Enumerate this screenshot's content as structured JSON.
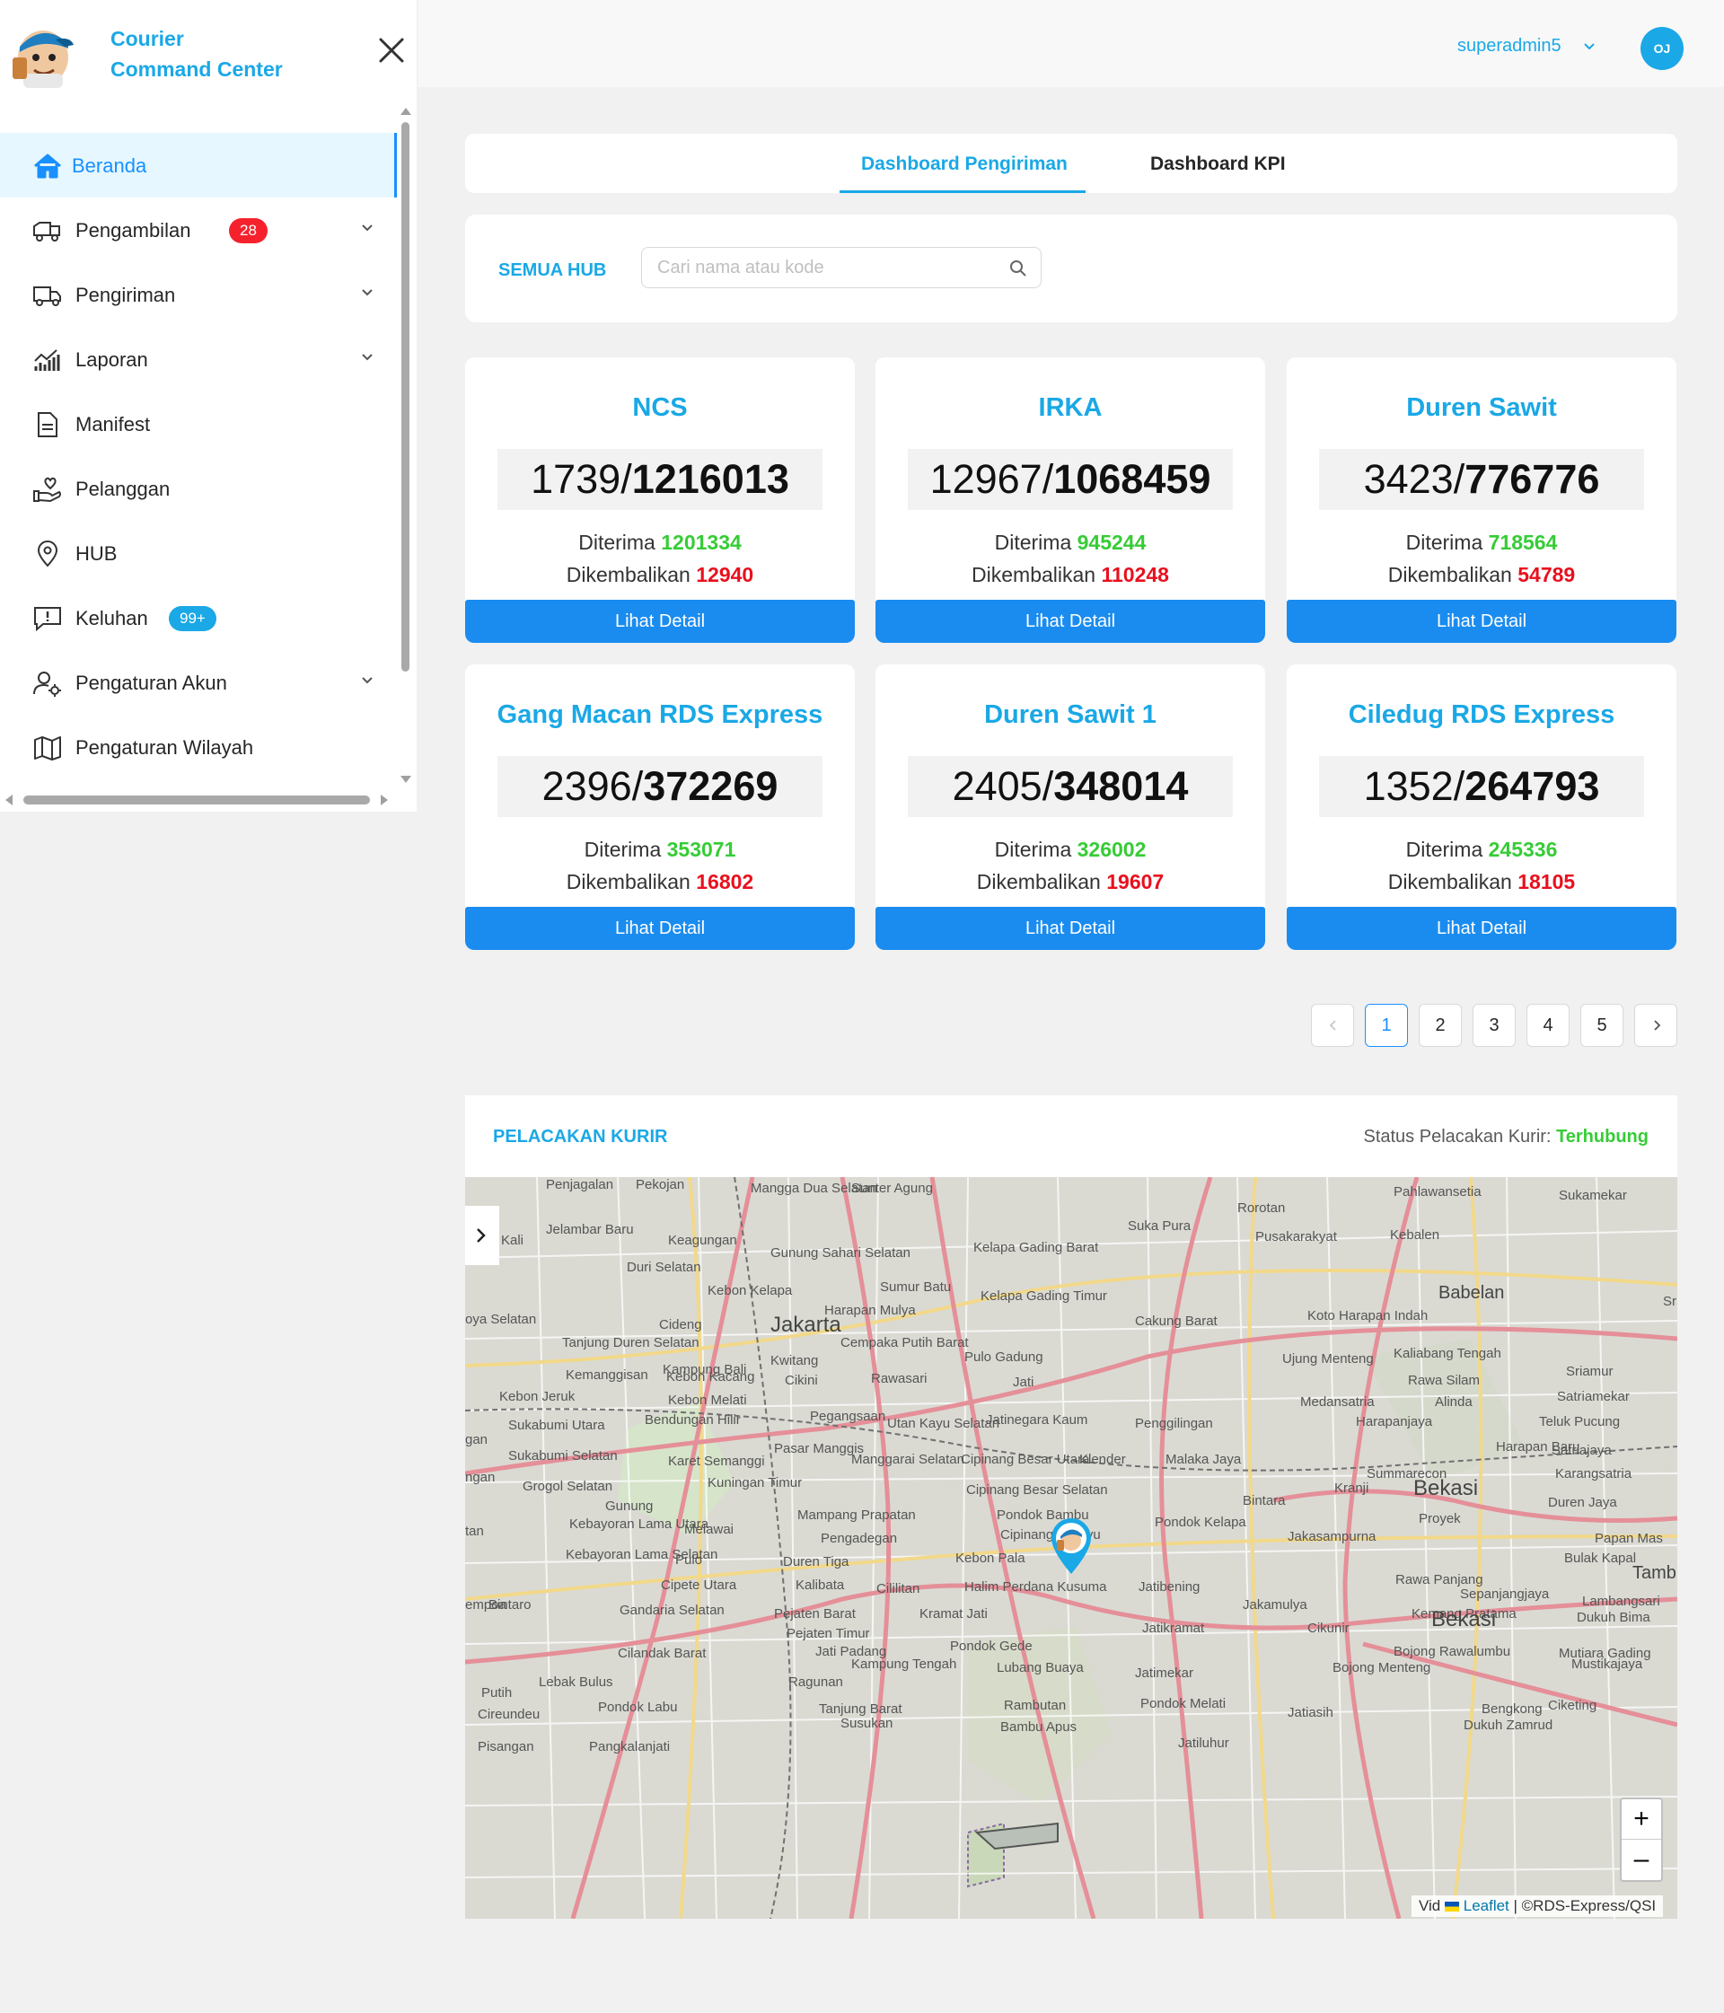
{
  "brand": {
    "title_line1": "Courier",
    "title_line2": "Command Center"
  },
  "sidebar": {
    "items": [
      {
        "label": "Beranda",
        "icon": "home-icon",
        "active": true
      },
      {
        "label": "Pengambilan",
        "icon": "truck-pickup-icon",
        "badge": "28",
        "expandable": true
      },
      {
        "label": "Pengiriman",
        "icon": "delivery-truck-icon",
        "expandable": true
      },
      {
        "label": "Laporan",
        "icon": "chart-icon",
        "expandable": true
      },
      {
        "label": "Manifest",
        "icon": "document-icon"
      },
      {
        "label": "Pelanggan",
        "icon": "hand-heart-icon"
      },
      {
        "label": "HUB",
        "icon": "location-pin-icon"
      },
      {
        "label": "Keluhan",
        "icon": "alert-message-icon",
        "badge": "99+"
      },
      {
        "label": "Pengaturan Akun",
        "icon": "user-settings-icon",
        "expandable": true
      },
      {
        "label": "Pengaturan Wilayah",
        "icon": "map-icon"
      }
    ]
  },
  "header": {
    "username": "superadmin5",
    "avatar_initials": "OJ"
  },
  "tabs": [
    {
      "label": "Dashboard Pengiriman",
      "active": true
    },
    {
      "label": "Dashboard KPI",
      "active": false
    }
  ],
  "filter": {
    "label": "SEMUA HUB",
    "search_placeholder": "Cari nama atau kode"
  },
  "hubs": [
    {
      "name": "NCS",
      "current": "1739",
      "total": "1216013",
      "received_label": "Diterima",
      "received": "1201334",
      "returned_label": "Dikembalikan",
      "returned": "12940",
      "button": "Lihat Detail"
    },
    {
      "name": "IRKA",
      "current": "12967",
      "total": "1068459",
      "received_label": "Diterima",
      "received": "945244",
      "returned_label": "Dikembalikan",
      "returned": "110248",
      "button": "Lihat Detail"
    },
    {
      "name": "Duren Sawit",
      "current": "3423",
      "total": "776776",
      "received_label": "Diterima",
      "received": "718564",
      "returned_label": "Dikembalikan",
      "returned": "54789",
      "button": "Lihat Detail"
    },
    {
      "name": "Gang Macan RDS Express",
      "current": "2396",
      "total": "372269",
      "received_label": "Diterima",
      "received": "353071",
      "returned_label": "Dikembalikan",
      "returned": "16802",
      "button": "Lihat Detail"
    },
    {
      "name": "Duren Sawit 1",
      "current": "2405",
      "total": "348014",
      "received_label": "Diterima",
      "received": "326002",
      "returned_label": "Dikembalikan",
      "returned": "19607",
      "button": "Lihat Detail"
    },
    {
      "name": "Ciledug RDS Express",
      "current": "1352",
      "total": "264793",
      "received_label": "Diterima",
      "received": "245336",
      "returned_label": "Dikembalikan",
      "returned": "18105",
      "button": "Lihat Detail"
    }
  ],
  "pagination": {
    "pages": [
      "1",
      "2",
      "3",
      "4",
      "5"
    ],
    "current": "1"
  },
  "tracking": {
    "title": "PELACAKAN KURIR",
    "status_label": "Status Pelacakan Kurir:",
    "status_value": "Terhubung",
    "zoom_in": "+",
    "zoom_out": "–",
    "attribution_prefix": "Vid",
    "attribution_link": "Leaflet",
    "attribution_suffix": " | ©RDS-Express/QSI",
    "labels": [
      "Penjagalan",
      "Pekojan",
      "Mangga Dua Selatan",
      "Sunter Agung",
      "Rorotan",
      "Pahlawansetia",
      "Sukamekar",
      "Kali",
      "Jelambar Baru",
      "Keagungan",
      "Gunung Sahari Selatan",
      "Kelapa Gading Barat",
      "Suka Pura",
      "Pusakarakyat",
      "Kebalen",
      "Duri Selatan",
      "Kebon Kelapa",
      "Sumur Batu",
      "Kelapa Gading Timur",
      "Babelan",
      "Cideng",
      "Jakarta",
      "Harapan Mulya",
      "Cakung Barat",
      "Koto Harapan Indah",
      "Tanjung Duren Selatan",
      "Cempaka Putih Barat",
      "Pulo Gadung",
      "Kaliabang Tengah",
      "Kampung Bali",
      "Kwitang",
      "Ujung Menteng",
      "Sriamur",
      "Kemanggisan",
      "Kebon Kacang",
      "Cikini",
      "Rawasari",
      "Rawa Silam",
      "Kebon Jeruk",
      "Kebon Melati",
      "Jati",
      "Medansatria",
      "Alinda",
      "Satriamekar",
      "Sukabumi Utara",
      "Bendungan Hilir",
      "Pegangsaan",
      "Utan Kayu Selatan",
      "Jatinegara Kaum",
      "Penggilingan",
      "Harapanjaya",
      "Teluk Pucung",
      "Pasar Manggis",
      "Harapan Baru",
      "Satriajaya",
      "Sukabumi Selatan",
      "Karet Semanggi",
      "Manggarai Selatan",
      "Cipinang Besar Utara",
      "Klender",
      "Malaka Jaya",
      "Summarecon",
      "Karangsatria",
      "Grogol Selatan",
      "Kuningan Timur",
      "Cipinang Besar Selatan",
      "Kranji",
      "Bintara",
      "Bekasi",
      "Duren Jaya",
      "Gunung",
      "Mampang Prapatan",
      "Pondok Bambu",
      "Pondok Kelapa",
      "Proyek",
      "Kebayoran Lama Utara",
      "Melawai",
      "Pengadegan",
      "Cipinang Melayu",
      "Jakasampurna",
      "Papan Mas",
      "Kebayoran Lama Selatan",
      "Pulo",
      "Duren Tiga",
      "Kebon Pala",
      "Bulak Kapal",
      "Tambun",
      "Cipete Utara",
      "Kalibata",
      "Cililitan",
      "Halim Perdana Kusuma",
      "Jatibening",
      "Rawa Panjang",
      "Sepanjangjaya",
      "Lambangsari",
      "Bintaro",
      "Gandaria Selatan",
      "Pejaten Barat",
      "Kramat Jati",
      "Jakamulya",
      "Kemang Pratama",
      "Dukuh Bima",
      "Pejaten Timur",
      "Jatikramat",
      "Cikunir",
      "Bekasi",
      "Cilandak Barat",
      "Jati Padang",
      "Pondok Gede",
      "Bojong Rawalumbu",
      "Mutiara Gading",
      "Kampung Tengah",
      "Lubang Buaya",
      "Jatimekar",
      "Bojong Menteng",
      "Mustikajaya",
      "Lebak Bulus",
      "Ragunan",
      "Putih",
      "Cireundeu",
      "Pondok Labu",
      "Tanjung Barat",
      "Rambutan",
      "Pondok Melati",
      "Jatiasih",
      "Bengkong",
      "Ciketing",
      "Susukan",
      "Bambu Apus",
      "Dukuh Zamrud",
      "Pisangan",
      "Pangkalanjati",
      "Jatiluhur",
      "oya Selatan",
      "gan",
      "ngan",
      "tan",
      "empoa",
      "Sri"
    ]
  }
}
